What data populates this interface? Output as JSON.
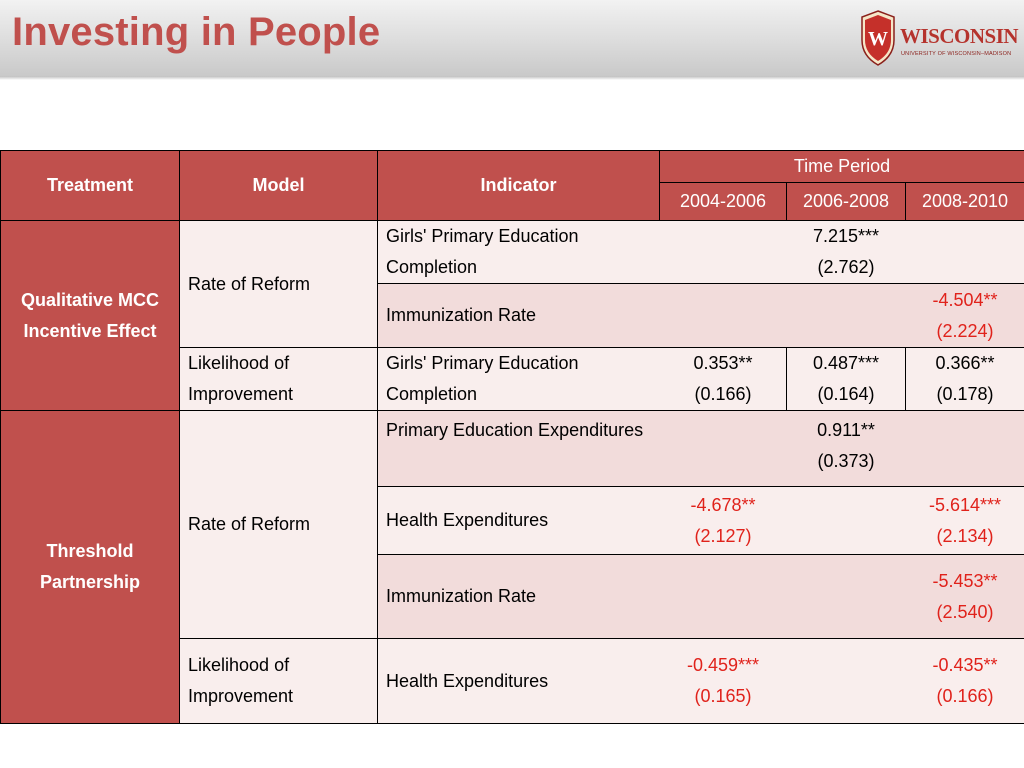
{
  "slide": {
    "title": "Investing in People",
    "logo": {
      "wordmark": "WISCONSIN",
      "subline": "UNIVERSITY OF WISCONSIN–MADISON",
      "crest_letter": "W"
    }
  },
  "table": {
    "headers": {
      "treatment": "Treatment",
      "model": "Model",
      "indicator": "Indicator",
      "time_period": "Time Period",
      "periods": [
        "2004-2006",
        "2006-2008",
        "2008-2010"
      ]
    },
    "groups": [
      {
        "treatment": "Qualitative MCC Incentive Effect",
        "rows": [
          {
            "model": "Rate of Reform",
            "indicator": "Girls' Primary Education Completion",
            "values": [
              "",
              "7.215***\n(2.762)",
              ""
            ]
          },
          {
            "model": "",
            "indicator": "Immunization Rate",
            "values": [
              "",
              "",
              "-4.504**\n(2.224)"
            ]
          },
          {
            "model": "Likelihood of Improvement",
            "indicator": "Girls' Primary Education Completion",
            "values": [
              "0.353**\n(0.166)",
              "0.487***\n(0.164)",
              "0.366**\n(0.178)"
            ]
          }
        ]
      },
      {
        "treatment": "Threshold Partnership",
        "rows": [
          {
            "model": "Rate of Reform",
            "indicator": "Primary Education Expenditures",
            "values": [
              "",
              "0.911**\n(0.373)",
              ""
            ]
          },
          {
            "model": "",
            "indicator": "Health Expenditures",
            "values": [
              "-4.678**\n(2.127)",
              "",
              "-5.614***\n(2.134)"
            ]
          },
          {
            "model": "",
            "indicator": "Immunization Rate",
            "values": [
              "",
              "",
              "-5.453**\n(2.540)"
            ]
          },
          {
            "model": "Likelihood of Improvement",
            "indicator": "Health Expenditures",
            "values": [
              "-0.459***\n(0.165)",
              "",
              "-0.435**\n(0.166)"
            ]
          }
        ]
      }
    ],
    "colors": {
      "header": "#c0504d",
      "row_dark": "#f2dcdb",
      "row_light": "#f9eeed",
      "negative_text": "#e0221b",
      "title": "#c0504d"
    }
  }
}
